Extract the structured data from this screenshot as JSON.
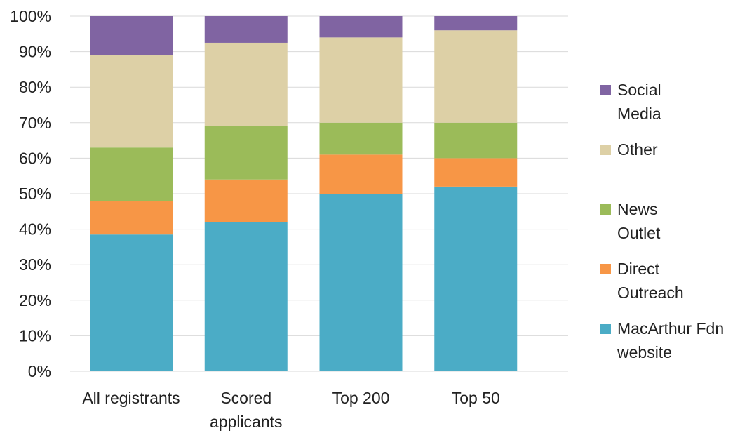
{
  "chart_data": {
    "type": "bar",
    "stacked": true,
    "categories": [
      "All registrants",
      "Scored\napplicants",
      "Top 200",
      "Top 50"
    ],
    "series": [
      {
        "name": "MacArthur Fdn website",
        "values": [
          38.5,
          42,
          50,
          52
        ]
      },
      {
        "name": "Direct Outreach",
        "values": [
          9.5,
          12,
          11,
          8
        ]
      },
      {
        "name": "News Outlet",
        "values": [
          15,
          15,
          9,
          10
        ]
      },
      {
        "name": "Other",
        "values": [
          26,
          23.5,
          24,
          26
        ]
      },
      {
        "name": "Social Media",
        "values": [
          11,
          7.5,
          6,
          4
        ]
      }
    ],
    "legend_labels": [
      [
        "Social",
        "Media"
      ],
      [
        "Other"
      ],
      [
        "News",
        "Outlet"
      ],
      [
        "Direct",
        "Outreach"
      ],
      [
        "MacArthur Fdn",
        "website"
      ]
    ],
    "colors": {
      "MacArthur Fdn website": "#4bacc6",
      "Direct Outreach": "#f79646",
      "News Outlet": "#9bbb59",
      "Other": "#ddd0a6",
      "Social Media": "#8064a2"
    },
    "y_ticks": [
      "0%",
      "10%",
      "20%",
      "30%",
      "40%",
      "50%",
      "60%",
      "70%",
      "80%",
      "90%",
      "100%"
    ],
    "ylim": [
      0,
      100
    ],
    "legend_position": "right",
    "grid": true,
    "title": "",
    "xlabel": "",
    "ylabel": ""
  }
}
